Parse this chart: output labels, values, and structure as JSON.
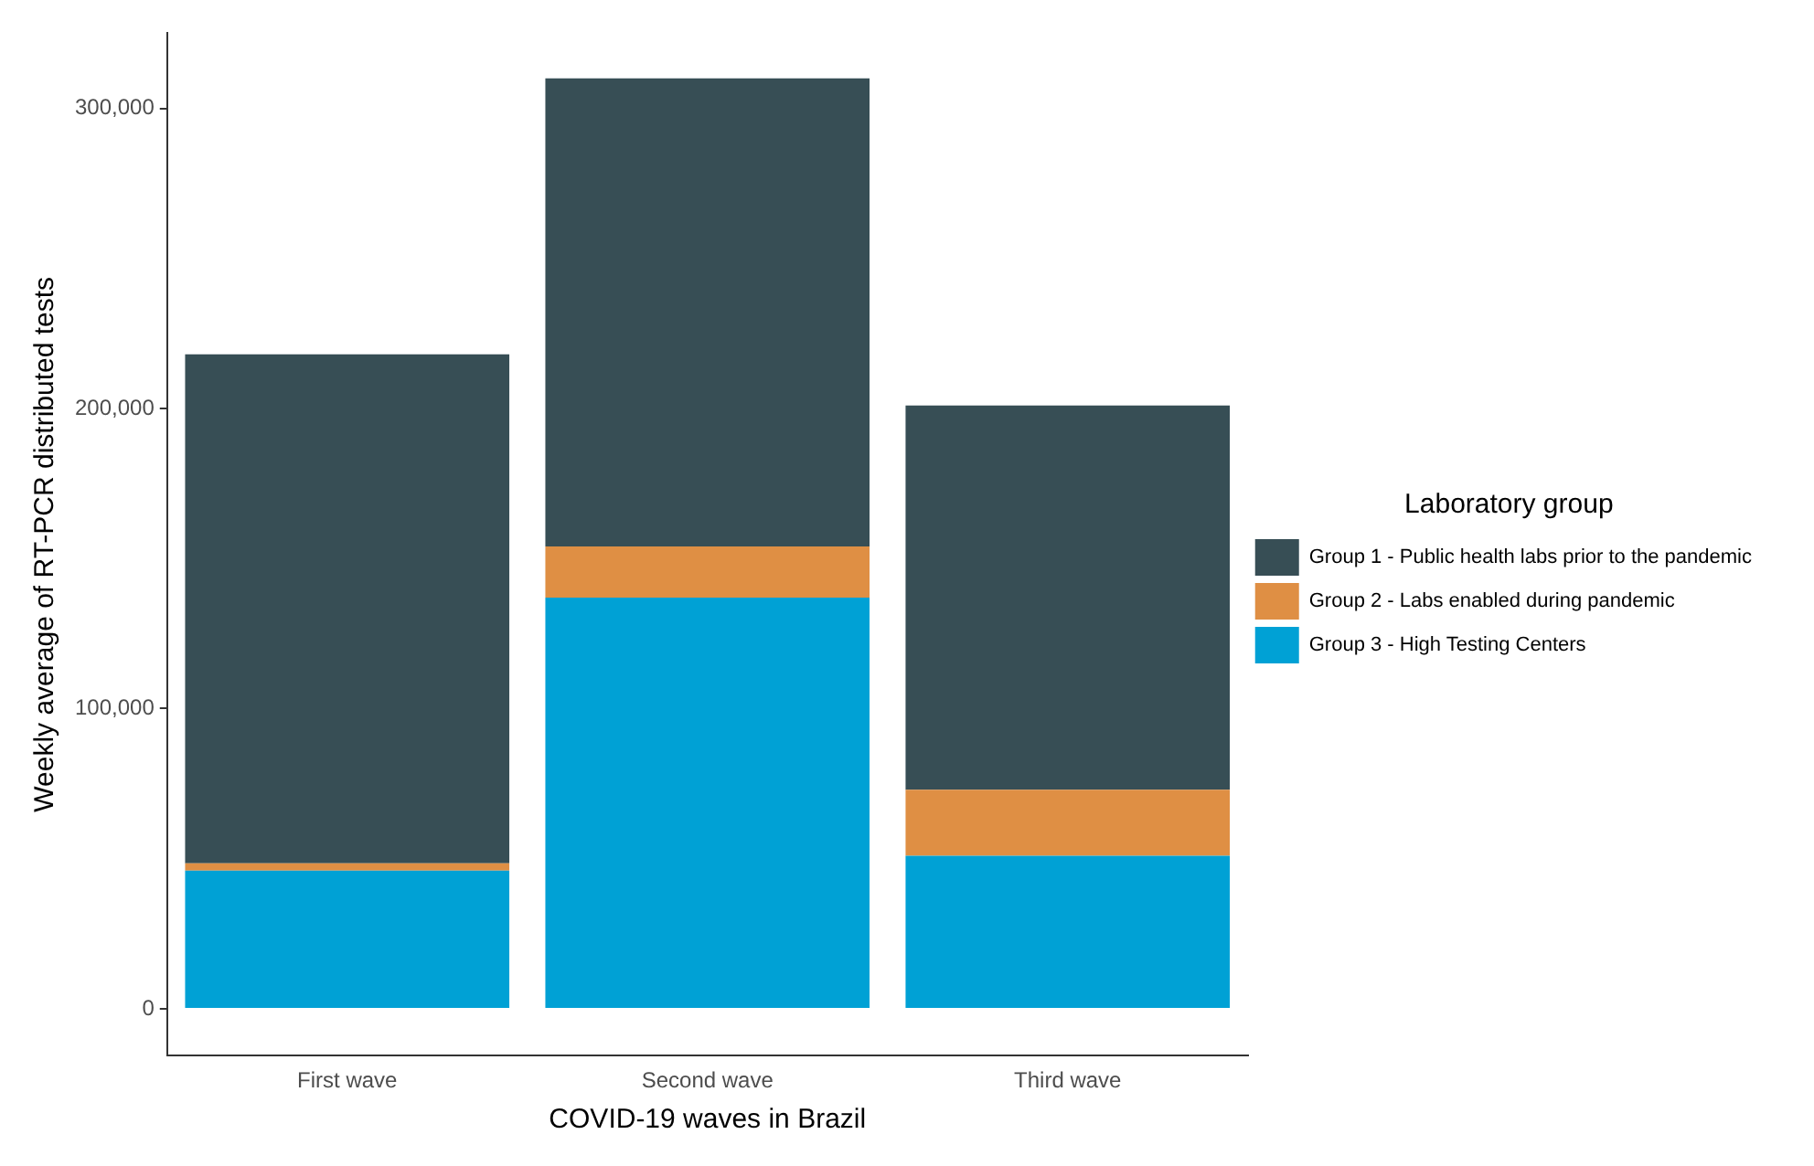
{
  "chart_data": {
    "type": "bar",
    "stacked": true,
    "xlabel": "COVID-19 waves in Brazil",
    "ylabel": "Weekly average of RT-PCR distributed tests",
    "legend_title": "Laboratory group",
    "legend": "right",
    "grid": false,
    "categories": [
      "First wave",
      "Second wave",
      "Third wave"
    ],
    "ylim": [
      -15600,
      325000
    ],
    "yticks": [
      {
        "value": 0,
        "label": "0"
      },
      {
        "value": 100000,
        "label": "100,000"
      },
      {
        "value": 200000,
        "label": "200,000"
      },
      {
        "value": 300000,
        "label": "300,000"
      }
    ],
    "series": [
      {
        "name": "Group 3 - High Testing Centers",
        "color": "#00a1d5",
        "values": [
          46000,
          137000,
          51000
        ]
      },
      {
        "name": "Group 2 - Labs enabled during pandemic",
        "color": "#df8f44",
        "values": [
          2500,
          17000,
          22000
        ]
      },
      {
        "name": "Group 1 - Public health labs prior to the pandemic",
        "color": "#374e55",
        "values": [
          169500,
          156000,
          128000
        ]
      }
    ]
  }
}
